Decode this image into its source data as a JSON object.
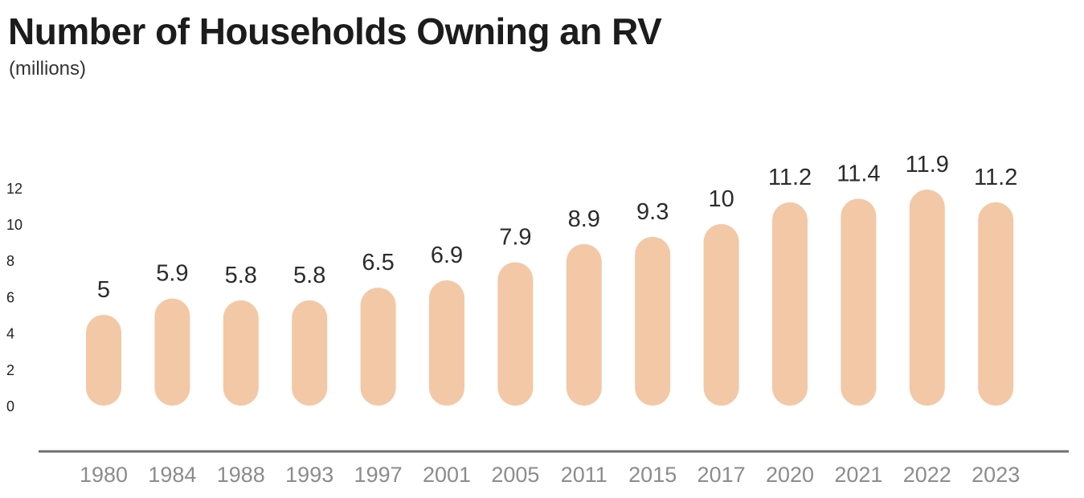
{
  "chart_data": {
    "type": "bar",
    "title": "Number of Households Owning an RV",
    "subtitle": "(millions)",
    "xlabel": "",
    "ylabel": "",
    "categories": [
      "1980",
      "1984",
      "1988",
      "1993",
      "1997",
      "2001",
      "2005",
      "2011",
      "2015",
      "2017",
      "2020",
      "2021",
      "2022",
      "2023"
    ],
    "values": [
      5,
      5.9,
      5.8,
      5.8,
      6.5,
      6.9,
      7.9,
      8.9,
      9.3,
      10,
      11.2,
      11.4,
      11.9,
      11.2
    ],
    "value_labels": [
      "5",
      "5.9",
      "5.8",
      "5.8",
      "6.5",
      "6.9",
      "7.9",
      "8.9",
      "9.3",
      "10",
      "11.2",
      "11.4",
      "11.9",
      "11.2"
    ],
    "y_ticks": [
      "0",
      "2",
      "4",
      "6",
      "8",
      "10",
      "12"
    ],
    "ylim": [
      0,
      12
    ],
    "grid": false,
    "legend": "none",
    "colors": {
      "bar": "#f3c8a6",
      "axis": "#6e6e6e",
      "category_text": "#8c8c8c",
      "value_text": "#2b2b2b",
      "tick_text": "#222222"
    }
  }
}
